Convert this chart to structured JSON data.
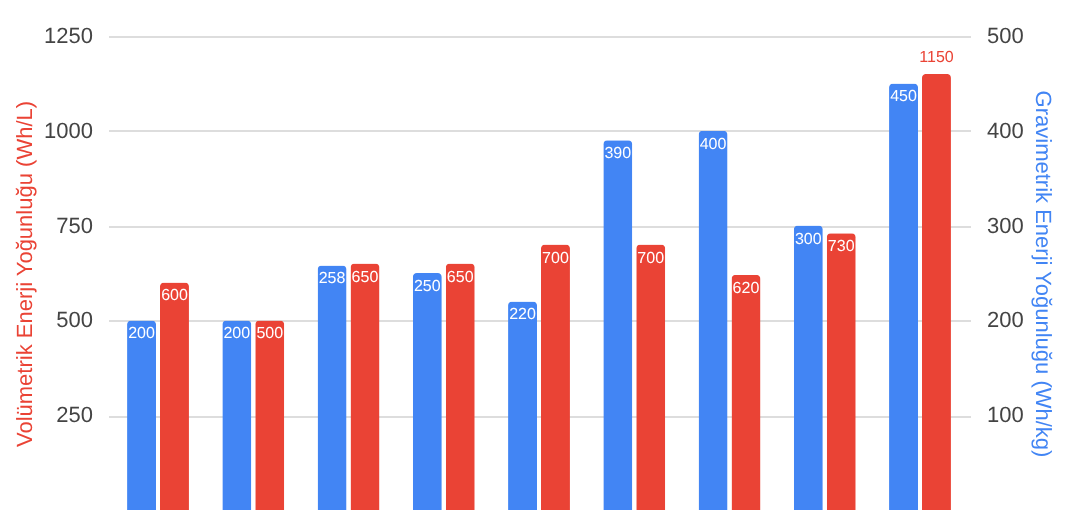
{
  "chart_data": {
    "type": "bar",
    "categories": [
      null,
      null,
      null,
      null,
      null,
      null,
      null,
      null,
      null
    ],
    "ylabel": "Volümetrik Enerji Yoğunluğu (Wh/L)",
    "y2label": "Gravimetrik Enerji Yoğunluğu (Wh/kg)",
    "series": [
      {
        "color": "#4285f4",
        "axis": "y2",
        "values": [
          200,
          200,
          258,
          250,
          220,
          390,
          400,
          300,
          450
        ]
      },
      {
        "color": "#ea4335",
        "values": [
          600,
          500,
          650,
          650,
          700,
          700,
          620,
          730,
          1150
        ]
      }
    ],
    "ylim": [
      0,
      1250
    ],
    "yticks": [
      250,
      500,
      750,
      1000,
      1250
    ],
    "y2lim": [
      0,
      500
    ],
    "y2ticks": [
      100,
      200,
      300,
      400,
      500
    ],
    "grid": "y",
    "data_labels": true
  }
}
